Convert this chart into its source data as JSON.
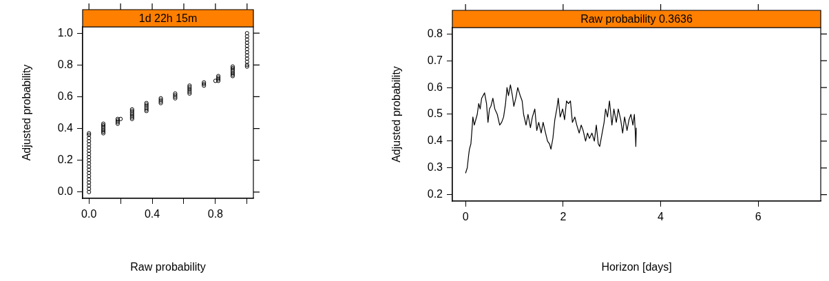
{
  "chart_data": [
    {
      "type": "scatter",
      "title": "1d 22h 15m",
      "xlabel": "Raw probability",
      "ylabel": "Adjusted probability",
      "color": "#000000",
      "marker": "circle",
      "grid": false,
      "legend": false,
      "xlim": [
        -0.04,
        1.04
      ],
      "ylim": [
        -0.04,
        1.04
      ],
      "xticks": [
        {
          "value": 0,
          "label": "0.0"
        },
        {
          "value": 0.2,
          "label": null
        },
        0.4,
        {
          "value": 0.6,
          "label": null
        },
        0.8,
        {
          "value": 1.0,
          "label": null
        }
      ],
      "yticks": [
        {
          "value": 0,
          "label": "0.0"
        },
        0.2,
        0.4,
        0.6,
        0.8,
        {
          "value": 1,
          "label": "1.0"
        }
      ],
      "x": [
        0,
        0,
        0,
        0,
        0,
        0,
        0,
        0,
        0,
        0,
        0,
        0,
        0,
        0,
        0,
        0,
        0,
        0,
        0,
        0,
        0.0909,
        0.0909,
        0.0909,
        0.0909,
        0.0909,
        0.0909,
        0.0909,
        0.1818,
        0.1818,
        0.1818,
        0.1818,
        0.2,
        0.2727,
        0.2727,
        0.2727,
        0.2727,
        0.2727,
        0.2727,
        0.2727,
        0.3636,
        0.3636,
        0.3636,
        0.3636,
        0.3636,
        0.3636,
        0.4545,
        0.4545,
        0.4545,
        0.4545,
        0.5455,
        0.5455,
        0.5455,
        0.5455,
        0.6364,
        0.6364,
        0.6364,
        0.6364,
        0.6364,
        0.6364,
        0.7273,
        0.7273,
        0.7273,
        0.8,
        0.8182,
        0.8182,
        0.8182,
        0.8182,
        0.9091,
        0.9091,
        0.9091,
        0.9091,
        0.9091,
        0.9091,
        0.9091,
        1,
        1,
        1,
        1,
        1,
        1,
        1,
        1,
        1,
        1,
        1,
        1
      ],
      "values": [
        0,
        0.02,
        0.04,
        0.06,
        0.08,
        0.1,
        0.12,
        0.14,
        0.16,
        0.18,
        0.2,
        0.22,
        0.24,
        0.26,
        0.28,
        0.3,
        0.32,
        0.34,
        0.36,
        0.37,
        0.37,
        0.38,
        0.39,
        0.4,
        0.41,
        0.42,
        0.43,
        0.43,
        0.44,
        0.45,
        0.46,
        0.46,
        0.46,
        0.47,
        0.48,
        0.49,
        0.5,
        0.51,
        0.52,
        0.51,
        0.52,
        0.53,
        0.54,
        0.55,
        0.56,
        0.56,
        0.57,
        0.58,
        0.59,
        0.59,
        0.6,
        0.61,
        0.62,
        0.62,
        0.63,
        0.64,
        0.65,
        0.66,
        0.67,
        0.67,
        0.68,
        0.69,
        0.7,
        0.7,
        0.71,
        0.72,
        0.73,
        0.73,
        0.74,
        0.75,
        0.76,
        0.77,
        0.78,
        0.79,
        0.79,
        0.8,
        0.82,
        0.84,
        0.86,
        0.88,
        0.9,
        0.92,
        0.94,
        0.96,
        0.98,
        1
      ]
    },
    {
      "type": "line",
      "title": "Raw probability 0.3636",
      "xlabel": "Horizon [days]",
      "ylabel": "Adjusted probability",
      "color": "#000000",
      "marker": "none",
      "grid": false,
      "legend": false,
      "xlim": [
        -0.27,
        7.28
      ],
      "ylim": [
        0.176,
        0.824
      ],
      "xticks": [
        0,
        2,
        4,
        6
      ],
      "yticks": [
        0.2,
        0.3,
        0.4,
        0.5,
        0.6,
        0.7,
        0.8
      ],
      "x": [
        0,
        0.035,
        0.065,
        0.08,
        0.11,
        0.135,
        0.15,
        0.18,
        0.21,
        0.24,
        0.27,
        0.3,
        0.33,
        0.39,
        0.43,
        0.46,
        0.49,
        0.52,
        0.56,
        0.6,
        0.65,
        0.7,
        0.74,
        0.78,
        0.82,
        0.85,
        0.88,
        0.92,
        0.96,
        0.99,
        1.03,
        1.07,
        1.12,
        1.16,
        1.19,
        1.24,
        1.28,
        1.33,
        1.37,
        1.42,
        1.46,
        1.5,
        1.55,
        1.59,
        1.64,
        1.68,
        1.72,
        1.75,
        1.79,
        1.83,
        1.87,
        1.9,
        1.94,
        1.99,
        2.03,
        2.07,
        2.11,
        2.15,
        2.19,
        2.24,
        2.28,
        2.33,
        2.37,
        2.41,
        2.46,
        2.5,
        2.54,
        2.59,
        2.64,
        2.68,
        2.72,
        2.75,
        2.8,
        2.84,
        2.87,
        2.91,
        2.95,
        3,
        3.04,
        3.09,
        3.13,
        3.18,
        3.22,
        3.26,
        3.31,
        3.35,
        3.39,
        3.43,
        3.46,
        3.48,
        3.49,
        3.5
      ],
      "values": [
        0.28,
        0.3,
        0.35,
        0.37,
        0.39,
        0.45,
        0.49,
        0.46,
        0.48,
        0.5,
        0.54,
        0.52,
        0.56,
        0.58,
        0.54,
        0.47,
        0.52,
        0.53,
        0.56,
        0.52,
        0.5,
        0.46,
        0.47,
        0.49,
        0.54,
        0.6,
        0.57,
        0.61,
        0.57,
        0.53,
        0.56,
        0.6,
        0.57,
        0.55,
        0.5,
        0.46,
        0.5,
        0.45,
        0.49,
        0.52,
        0.44,
        0.47,
        0.43,
        0.47,
        0.43,
        0.4,
        0.39,
        0.37,
        0.41,
        0.48,
        0.52,
        0.56,
        0.49,
        0.52,
        0.48,
        0.55,
        0.54,
        0.55,
        0.47,
        0.49,
        0.46,
        0.43,
        0.46,
        0.44,
        0.4,
        0.43,
        0.41,
        0.43,
        0.4,
        0.46,
        0.39,
        0.38,
        0.43,
        0.47,
        0.52,
        0.49,
        0.55,
        0.46,
        0.52,
        0.47,
        0.52,
        0.48,
        0.43,
        0.49,
        0.44,
        0.48,
        0.5,
        0.46,
        0.5,
        0.43,
        0.38,
        0.45
      ]
    }
  ]
}
